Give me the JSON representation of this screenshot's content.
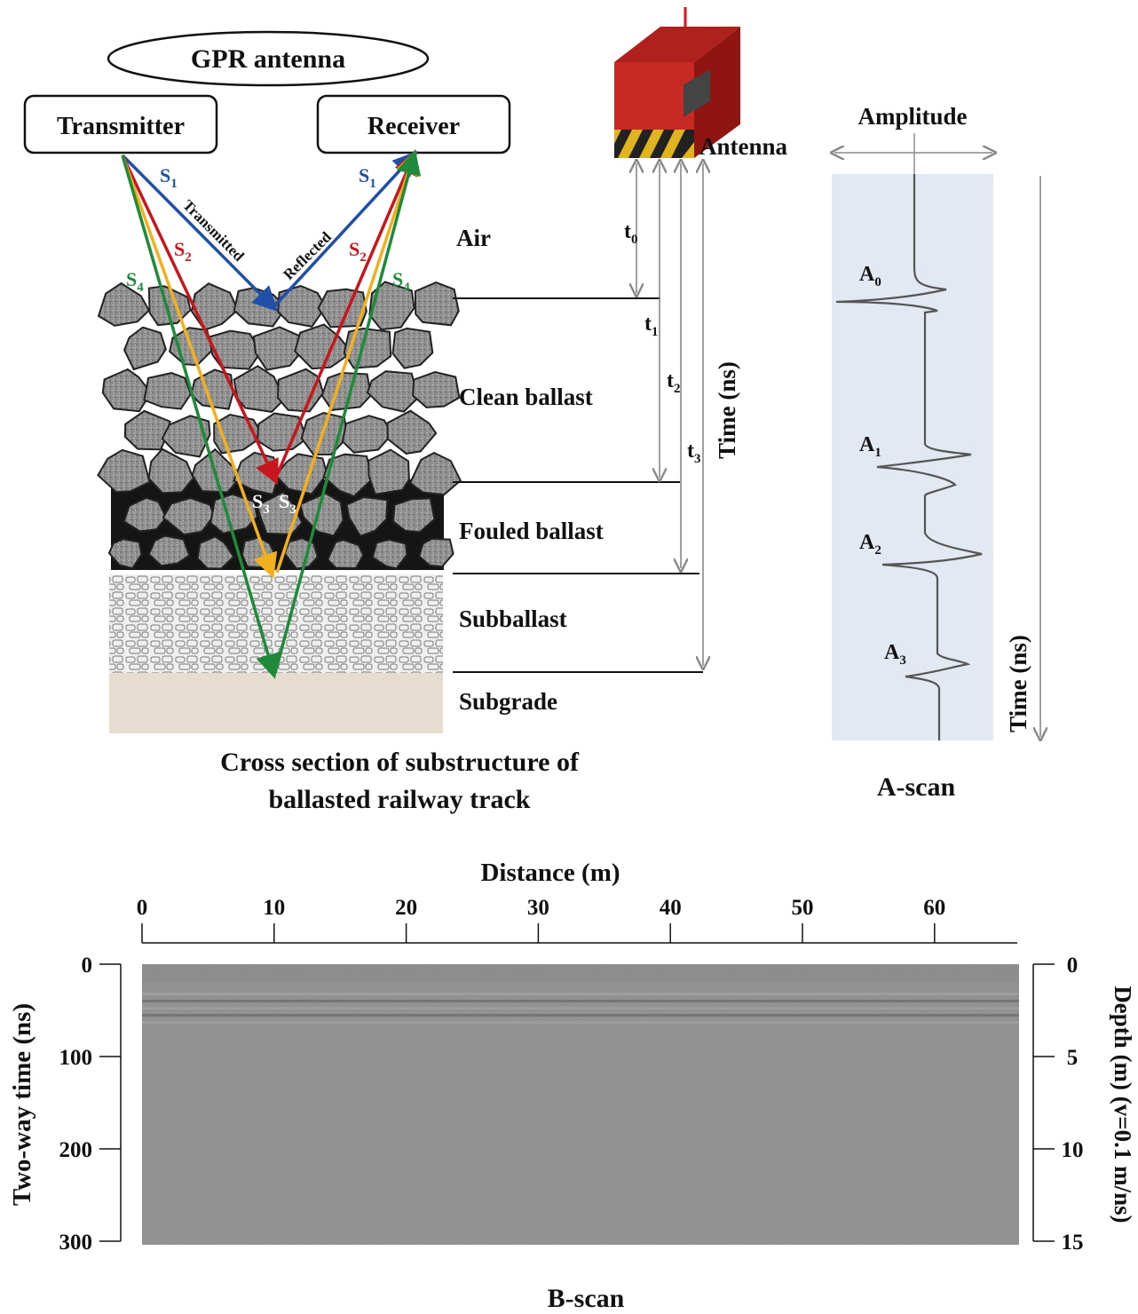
{
  "antenna_group": {
    "title": "GPR antenna",
    "transmitter": "Transmitter",
    "receiver": "Receiver"
  },
  "rays": {
    "s1": "S",
    "s1_sub": "1",
    "s2": "S",
    "s2_sub": "2",
    "s3": "S",
    "s3_sub": "3",
    "s4": "S",
    "s4_sub": "4",
    "transmitted": "Transmitted",
    "reflected": "Reflected",
    "colors": {
      "s1": "#1f4fa8",
      "s2": "#c8161d",
      "s3": "#f2b01e",
      "s4": "#1e8a3a"
    }
  },
  "layers": {
    "air": "Air",
    "clean_ballast": "Clean ballast",
    "fouled_ballast": "Fouled ballast",
    "subballast": "Subballast",
    "subgrade": "Subgrade"
  },
  "cross_section_caption": {
    "line1": "Cross section of substructure of",
    "line2": "ballasted railway track"
  },
  "device": {
    "antenna_label": "Antenna"
  },
  "times": {
    "t0": "t",
    "t0_sub": "0",
    "t1": "t",
    "t1_sub": "1",
    "t2": "t",
    "t2_sub": "2",
    "t3": "t",
    "t3_sub": "3",
    "axis_label": "Time (ns)"
  },
  "ascan": {
    "amplitude_label": "Amplitude",
    "time_label": "Time (ns)",
    "caption": "A-scan",
    "peaks": [
      {
        "name": "A",
        "sub": "0"
      },
      {
        "name": "A",
        "sub": "1"
      },
      {
        "name": "A",
        "sub": "2"
      },
      {
        "name": "A",
        "sub": "3"
      }
    ]
  },
  "bscan": {
    "caption": "B-scan",
    "top_axis_title": "Distance (m)",
    "top_ticks": [
      "0",
      "10",
      "20",
      "30",
      "40",
      "50",
      "60"
    ],
    "left_axis_title": "Two-way time (ns)",
    "left_ticks": [
      "0",
      "100",
      "200",
      "300"
    ],
    "right_axis_title": "Depth (m) (v=0.1 m/ns)",
    "right_ticks": [
      "0",
      "5",
      "10",
      "15"
    ]
  }
}
